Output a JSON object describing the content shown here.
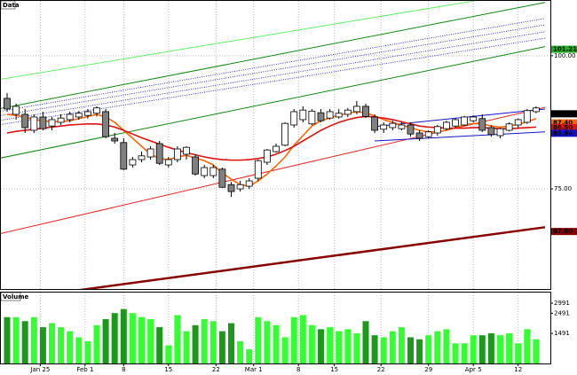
{
  "chart_data": {
    "type": "candlestick",
    "title": "Data",
    "volume_title": "Volume",
    "ylim": [
      56.2,
      110.3
    ],
    "yticks": [
      {
        "value": 100,
        "label": "100.00"
      },
      {
        "value": 75,
        "label": "75.00"
      }
    ],
    "grid": true,
    "up_color": "#ffffff",
    "down_color": "#808080",
    "xticks": [
      {
        "value": 3.7,
        "label": "Jan 25"
      },
      {
        "value": 8.7,
        "label": "Feb 1"
      },
      {
        "value": 13,
        "label": "8"
      },
      {
        "value": 18,
        "label": "15"
      },
      {
        "value": 23.3,
        "label": "22"
      },
      {
        "value": 27.5,
        "label": "Mar 1"
      },
      {
        "value": 32.5,
        "label": "8"
      },
      {
        "value": 36.5,
        "label": "15"
      },
      {
        "value": 41.7,
        "label": "22"
      },
      {
        "value": 47,
        "label": "29"
      },
      {
        "value": 52,
        "label": "Apr 5"
      },
      {
        "value": 57,
        "label": "12"
      }
    ],
    "candles": [
      [
        92,
        93,
        89.5,
        90
      ],
      [
        89,
        91,
        88,
        90.5
      ],
      [
        89,
        90,
        85.5,
        86.5
      ],
      [
        86,
        89,
        85.5,
        88.5
      ],
      [
        88.5,
        89.5,
        86,
        86.3
      ],
      [
        86.8,
        88.5,
        86,
        88
      ],
      [
        87.5,
        89,
        87,
        88.3
      ],
      [
        88,
        89.5,
        87.5,
        89
      ],
      [
        88.5,
        89.6,
        88,
        89.2
      ],
      [
        88.8,
        90,
        88.2,
        89.5
      ],
      [
        89.2,
        90.5,
        88.6,
        90.2
      ],
      [
        89.5,
        90,
        84.5,
        84.8
      ],
      [
        84.5,
        85.5,
        83.5,
        84
      ],
      [
        83.7,
        84.5,
        78.5,
        78.7
      ],
      [
        79.5,
        81,
        79,
        80.5
      ],
      [
        80.5,
        82,
        80,
        81.2
      ],
      [
        81,
        83,
        80.5,
        82.5
      ],
      [
        83.5,
        84,
        79.5,
        79.8
      ],
      [
        79.5,
        81,
        79,
        80.5
      ],
      [
        80.5,
        83,
        80,
        82.5
      ],
      [
        81.5,
        83,
        80.5,
        82.8
      ],
      [
        81,
        81.5,
        77.5,
        77.8
      ],
      [
        77.5,
        79.5,
        77,
        79
      ],
      [
        77.5,
        79.5,
        77,
        79
      ],
      [
        78.7,
        79,
        75.2,
        75.3
      ],
      [
        75.8,
        76.3,
        73.5,
        74.5
      ],
      [
        75,
        76.5,
        74.5,
        75.8
      ],
      [
        75.5,
        77,
        75,
        76.5
      ],
      [
        77,
        80.5,
        76.5,
        80.3
      ],
      [
        80,
        82.5,
        79.5,
        82.3
      ],
      [
        82,
        83.5,
        81.8,
        83
      ],
      [
        83.2,
        87.5,
        83,
        87.3
      ],
      [
        87,
        90,
        86.5,
        89.5
      ],
      [
        88,
        90.5,
        87.5,
        89.8
      ],
      [
        87.2,
        90,
        87,
        89.6
      ],
      [
        89.3,
        90,
        87.5,
        87.8
      ],
      [
        88.3,
        90,
        88,
        89.5
      ],
      [
        88.5,
        90,
        88.2,
        89.2
      ],
      [
        89,
        90.2,
        88.5,
        89.8
      ],
      [
        89.5,
        91.5,
        89,
        90.5
      ],
      [
        90.5,
        91,
        88.3,
        88.6
      ],
      [
        88.5,
        89,
        85.5,
        86
      ],
      [
        86.2,
        87.5,
        85.5,
        87
      ],
      [
        86.5,
        87.8,
        86,
        87.3
      ],
      [
        86.3,
        87.5,
        86,
        87
      ],
      [
        87,
        87.5,
        84.8,
        85.3
      ],
      [
        85.5,
        86,
        84,
        84.5
      ],
      [
        84.8,
        86,
        84.5,
        85.7
      ],
      [
        85.5,
        87,
        85,
        86.7
      ],
      [
        86.3,
        87.8,
        86,
        87.5
      ],
      [
        86.8,
        88.2,
        86.5,
        88
      ],
      [
        87,
        88.7,
        86.8,
        88.5
      ],
      [
        87.8,
        88.8,
        87.5,
        88.5
      ],
      [
        88.2,
        89,
        85.7,
        86
      ],
      [
        86.5,
        87,
        84.8,
        85.2
      ],
      [
        85,
        86.5,
        84.5,
        86.3
      ],
      [
        86,
        87.5,
        85.8,
        87.2
      ],
      [
        87,
        88.2,
        86.5,
        88
      ],
      [
        87.5,
        90,
        87.2,
        89.7
      ],
      [
        89.5,
        90.5,
        89.2,
        90.2
      ]
    ],
    "lines": [
      {
        "color": "#ff6600",
        "values": [
          89,
          88.8,
          88.5,
          88,
          87.8,
          87.6,
          87.6,
          87.8,
          88.2,
          88.6,
          89,
          88.5,
          87.5,
          86,
          84.5,
          83,
          81.5,
          80.7,
          80.5,
          81,
          81.3,
          80.8,
          80.3,
          79.5,
          78,
          76.8,
          75.8,
          75.5,
          76.5,
          77.8,
          79.3,
          81,
          83.2,
          85,
          86.8,
          87.8,
          88.3,
          88.8,
          89.2,
          89.5,
          89.3,
          88.7,
          88,
          87.5,
          87,
          86.5,
          86,
          85.7,
          85.7,
          86,
          86.5,
          87,
          87.3,
          87.2,
          86.8,
          86.6,
          86.8,
          87.1,
          87.6,
          88.2
        ]
      },
      {
        "color": "#dd1111",
        "values": [
          85.5,
          85.8,
          86,
          86.2,
          86.4,
          86.6,
          86.8,
          87,
          87.1,
          87.2,
          87.2,
          87,
          86.6,
          86,
          85.3,
          84.6,
          84,
          83.4,
          82.8,
          82.3,
          81.8,
          81.4,
          81,
          80.7,
          80.5,
          80.4,
          80.4,
          80.5,
          80.7,
          81,
          81.5,
          82.2,
          83,
          84,
          85,
          86,
          86.8,
          87.5,
          88,
          88.4,
          88.6,
          88.5,
          88.3,
          88,
          87.6,
          87.2,
          86.8,
          86.6,
          86.5,
          86.4,
          86.4,
          86.4,
          86.5,
          86.5,
          86.4,
          86.3,
          86.3,
          86.4,
          86.5,
          86.6
        ]
      }
    ],
    "trendlines": [
      {
        "color": "#66ee66",
        "style": "solid",
        "points": [
          [
            -1,
            95.5
          ],
          [
            60,
            112.5
          ]
        ]
      },
      {
        "color": "#118811",
        "style": "solid",
        "points": [
          [
            -1,
            90
          ],
          [
            60,
            110
          ]
        ]
      },
      {
        "color": "#3333cc",
        "style": "dotted",
        "points": [
          [
            -1,
            89.5
          ],
          [
            60,
            107
          ]
        ]
      },
      {
        "color": "#3333cc",
        "style": "dotted",
        "points": [
          [
            -1,
            88.7
          ],
          [
            60,
            105.8
          ]
        ]
      },
      {
        "color": "#3333cc",
        "style": "dotted",
        "points": [
          [
            -1,
            87.8
          ],
          [
            60,
            104.5
          ]
        ]
      },
      {
        "color": "#3333cc",
        "style": "dotted",
        "points": [
          [
            -1,
            87
          ],
          [
            60,
            103.3
          ]
        ]
      },
      {
        "color": "#118811",
        "style": "solid",
        "points": [
          [
            -1,
            80.7
          ],
          [
            60,
            101.7
          ]
        ]
      },
      {
        "color": "#ee2222",
        "style": "solid",
        "points": [
          [
            -1,
            66.5
          ],
          [
            60,
            90.3
          ]
        ]
      },
      {
        "color": "#1111cc",
        "style": "solid",
        "points": [
          [
            41,
            86.7
          ],
          [
            60,
            90
          ]
        ]
      },
      {
        "color": "#1111cc",
        "style": "solid",
        "points": [
          [
            41,
            84
          ],
          [
            60,
            85.7
          ]
        ]
      },
      {
        "color": "#880000",
        "style": "thick",
        "points": [
          [
            5,
            55.3
          ],
          [
            60,
            67.8
          ]
        ]
      }
    ],
    "price_labels": [
      {
        "value": 101.216,
        "label": "101.2160",
        "color": "#22aa22"
      },
      {
        "value": 89.1,
        "label": "89.10",
        "color": "#000000"
      },
      {
        "value": 87.4,
        "label": "87.40",
        "color": "#ff6600"
      },
      {
        "value": 86.5,
        "label": "86.50",
        "color": "#dd1111"
      },
      {
        "value": 85.44,
        "label": "85.44",
        "color": "#1111cc"
      },
      {
        "value": 67,
        "label": "67.00",
        "color": "#880000"
      }
    ],
    "volume": [
      2300,
      2300,
      2100,
      2300,
      1800,
      2000,
      1800,
      1600,
      1300,
      1100,
      1900,
      2200,
      2500,
      2700,
      2500,
      2300,
      2200,
      1800,
      900,
      2400,
      1600,
      1900,
      2200,
      2100,
      1600,
      2000,
      1100,
      700,
      2300,
      2100,
      1900,
      1300,
      2300,
      2400,
      1900,
      1700,
      1800,
      1600,
      1700,
      1500,
      2100,
      1400,
      1300,
      1600,
      1800,
      1300,
      1200,
      1400,
      1600,
      1700,
      1000,
      1000,
      1400,
      1400,
      1500,
      1400,
      1500,
      1000,
      1700,
      1200
    ],
    "volume_ylim": [
      0,
      3520
    ],
    "volume_yticks": [
      2991,
      2491,
      1491
    ],
    "up_volume_color": "#33ff33",
    "down_volume_color": "#1a991a"
  }
}
